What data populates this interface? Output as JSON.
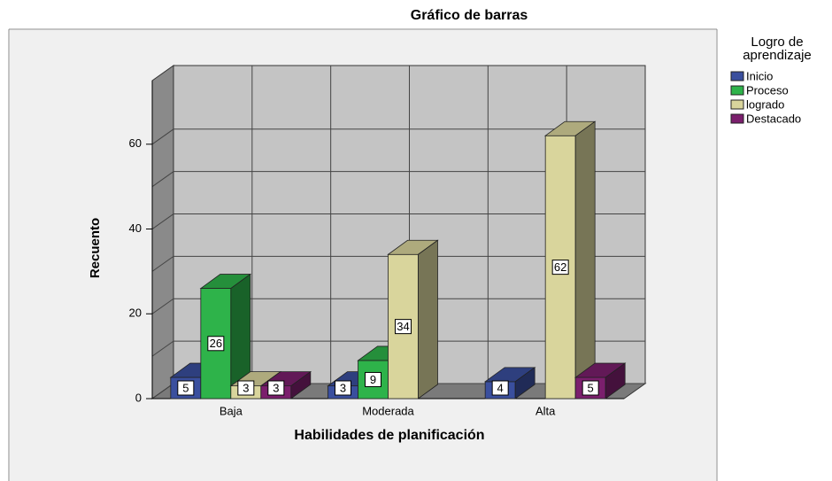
{
  "chart_data": {
    "type": "bar3d",
    "title": "Gráfico de barras",
    "x_label": "Habilidades de planificación",
    "y_label": "Recuento",
    "legend_title": "Logro de aprendizaje",
    "categories": [
      "Baja",
      "Moderada",
      "Alta"
    ],
    "series": [
      {
        "name": "Inicio",
        "color": "#3a4f9e",
        "values": [
          5,
          3,
          4
        ]
      },
      {
        "name": "Proceso",
        "color": "#2eb34a",
        "values": [
          26,
          9,
          null
        ]
      },
      {
        "name": "logrado",
        "color": "#d9d59c",
        "values": [
          3,
          34,
          62
        ]
      },
      {
        "name": "Destacado",
        "color": "#7b1f6d",
        "values": [
          3,
          null,
          5
        ]
      }
    ],
    "ylim": [
      0,
      75
    ],
    "yticks": [
      0,
      20,
      40,
      60
    ],
    "grid": true
  }
}
